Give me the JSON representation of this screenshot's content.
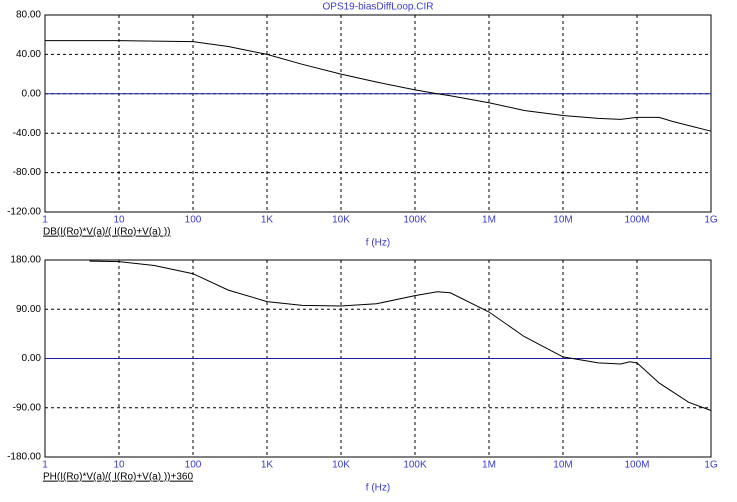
{
  "chart_data": [
    {
      "type": "line",
      "title": "OPS19-biasDiffLoop.CIR",
      "xlabel": "f (Hz)",
      "xscale": "log",
      "grid": true,
      "xlim": [
        1,
        1000000000
      ],
      "xticks": [
        1,
        10,
        100,
        {
          "value": 1000,
          "label": "1K"
        },
        {
          "value": 10000,
          "label": "10K"
        },
        {
          "value": 100000,
          "label": "100K"
        },
        {
          "value": 1000000,
          "label": "1M"
        },
        {
          "value": 10000000,
          "label": "10M"
        },
        {
          "value": 100000000,
          "label": "100M"
        },
        {
          "value": 1000000000,
          "label": "1G"
        }
      ],
      "ylim": [
        -120,
        80
      ],
      "yticks": [
        {
          "value": 80,
          "label": "80.00"
        },
        {
          "value": 40,
          "label": "40.00"
        },
        {
          "value": 0,
          "label": "0.00"
        },
        {
          "value": -40,
          "label": "-40.00"
        },
        {
          "value": -80,
          "label": "-80.00"
        },
        {
          "value": -120,
          "label": "-120.00"
        }
      ],
      "x": [
        1,
        10,
        100,
        300,
        1000,
        3000,
        10000,
        30000,
        100000,
        200000,
        300000,
        1000000,
        3000000,
        10000000,
        30000000,
        60000000,
        100000000,
        200000000,
        300000000,
        1000000000
      ],
      "series": [
        {
          "name": "DB(I(Ro)*V(a)/( I(Ro)+V(a) ))",
          "color": "#000000",
          "values": [
            54,
            54,
            53,
            48,
            40,
            30,
            20,
            12,
            4,
            0,
            -2,
            -9,
            -17,
            -22,
            -25,
            -26,
            -24,
            -24,
            -28,
            -38
          ]
        }
      ]
    },
    {
      "type": "line",
      "xlabel": "f (Hz)",
      "xscale": "log",
      "grid": true,
      "xlim": [
        1,
        1000000000
      ],
      "xticks": [
        1,
        10,
        100,
        {
          "value": 1000,
          "label": "1K"
        },
        {
          "value": 10000,
          "label": "10K"
        },
        {
          "value": 100000,
          "label": "100K"
        },
        {
          "value": 1000000,
          "label": "1M"
        },
        {
          "value": 10000000,
          "label": "10M"
        },
        {
          "value": 100000000,
          "label": "100M"
        },
        {
          "value": 1000000000,
          "label": "1G"
        }
      ],
      "ylim": [
        -180,
        180
      ],
      "yticks": [
        {
          "value": 180,
          "label": "180.00"
        },
        {
          "value": 90,
          "label": "90.00"
        },
        {
          "value": 0,
          "label": "0.00"
        },
        {
          "value": -90,
          "label": "-90.00"
        },
        {
          "value": -180,
          "label": "-180.00"
        }
      ],
      "x": [
        4,
        10,
        30,
        100,
        300,
        1000,
        3000,
        10000,
        30000,
        100000,
        200000,
        300000,
        1000000,
        3000000,
        10000000,
        30000000,
        60000000,
        80000000,
        100000000,
        200000000,
        500000000,
        1000000000
      ],
      "series": [
        {
          "name": "PH(I(Ro)*V(a)/( I(Ro)+V(a) ))+360",
          "color": "#000000",
          "values": [
            178,
            177,
            170,
            155,
            125,
            104,
            97,
            96,
            100,
            115,
            122,
            120,
            85,
            40,
            3,
            -8,
            -10,
            -6,
            -8,
            -45,
            -80,
            -95
          ]
        }
      ]
    }
  ]
}
